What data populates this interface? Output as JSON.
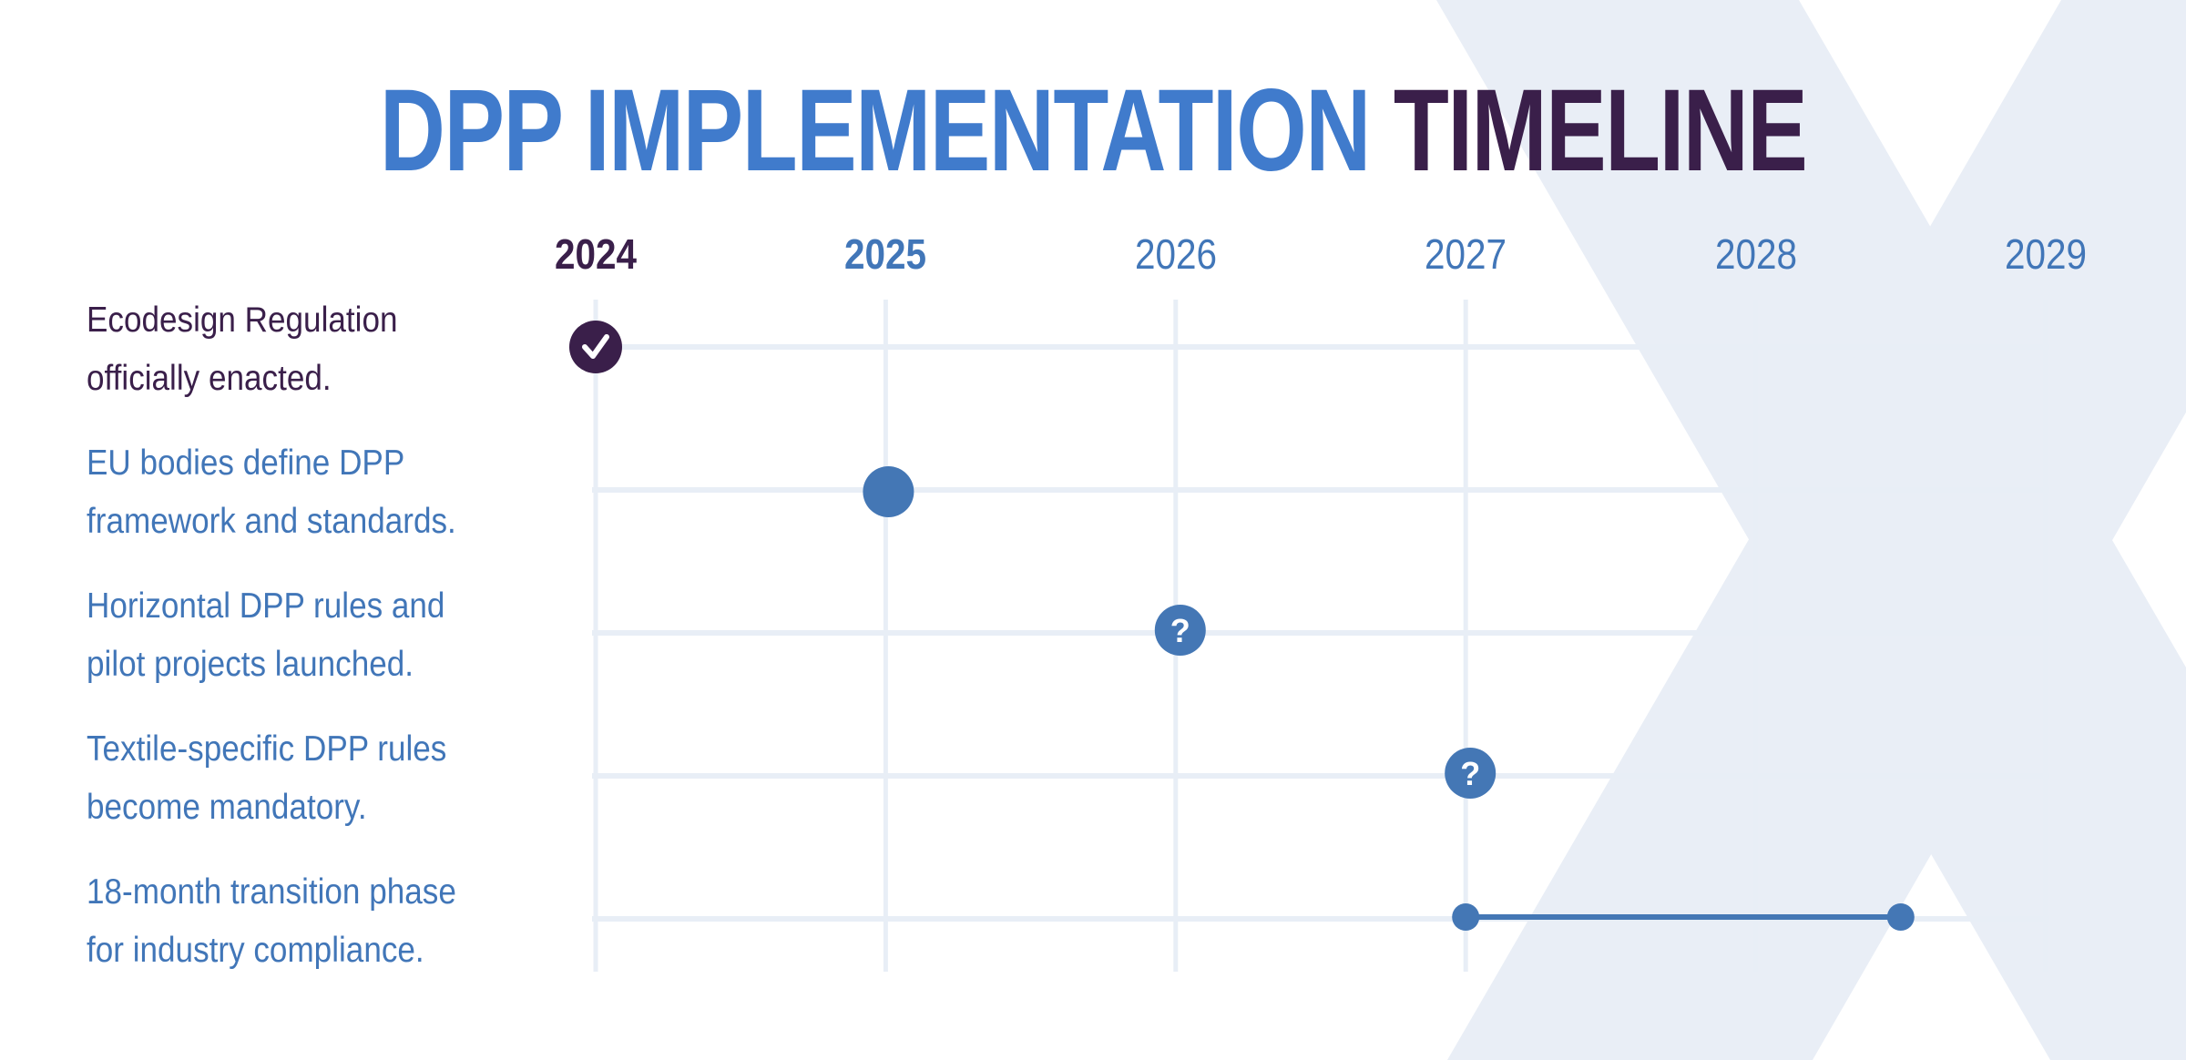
{
  "title": {
    "part1": "DPP IMPLEMENTATION",
    "part2": "TIMELINE"
  },
  "colors": {
    "title_blue": "#407bcc",
    "dark": "#3a1f4a",
    "marker_blue": "#4477b5",
    "grid": "#e8eef6",
    "background_x": "#e9eef6"
  },
  "chart_data": {
    "type": "timeline",
    "title": "DPP IMPLEMENTATION TIMELINE",
    "x_ticks": [
      "2024",
      "2025",
      "2026",
      "2027",
      "2028",
      "2029"
    ],
    "xlim": [
      2024,
      2029
    ],
    "grid": true,
    "events": [
      {
        "lines": [
          "Ecodesign Regulation",
          "officially enacted."
        ],
        "start": 2024,
        "marker": "check-icon",
        "status": "completed",
        "color": "#3a1f4a"
      },
      {
        "lines": [
          "EU bodies define DPP",
          "framework and standards."
        ],
        "start": 2025,
        "marker": "dot",
        "status": "current",
        "color": "#4477b5"
      },
      {
        "lines": [
          "Horizontal DPP rules and",
          "pilot projects launched."
        ],
        "start": 2026,
        "marker": "question-icon",
        "status": "uncertain",
        "color": "#4477b5"
      },
      {
        "lines": [
          "Textile-specific DPP rules",
          "become mandatory."
        ],
        "start": 2027,
        "marker": "question-icon",
        "status": "uncertain",
        "color": "#4477b5"
      },
      {
        "lines": [
          "18-month transition phase",
          "for industry compliance."
        ],
        "start": 2027,
        "end": 2028.5,
        "marker": "range",
        "status": "planned",
        "color": "#4477b5"
      }
    ]
  }
}
